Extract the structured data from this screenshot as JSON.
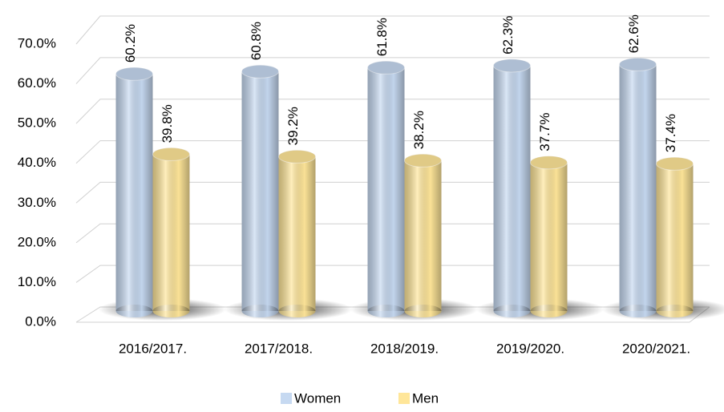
{
  "chart_data": {
    "type": "bar3d",
    "categories": [
      "2016/2017.",
      "2017/2018.",
      "2018/2019.",
      "2019/2020.",
      "2020/2021."
    ],
    "series": [
      {
        "name": "Women",
        "color": "#c6d9f1",
        "values": [
          60.2,
          60.8,
          61.8,
          62.3,
          62.6
        ],
        "value_labels": [
          "60.2%",
          "60.8%",
          "61.8%",
          "62.3%",
          "62.6%"
        ]
      },
      {
        "name": "Men",
        "color": "#ffe699",
        "values": [
          39.8,
          39.2,
          38.2,
          37.7,
          37.4
        ],
        "value_labels": [
          "39.8%",
          "39.2%",
          "38.2%",
          "37.7%",
          "37.4%"
        ]
      }
    ],
    "ylim": [
      0,
      70
    ],
    "yticks": [
      {
        "value": 0,
        "label": "0.0%"
      },
      {
        "value": 10,
        "label": "10.0%"
      },
      {
        "value": 20,
        "label": "20.0%"
      },
      {
        "value": 30,
        "label": "30.0%"
      },
      {
        "value": 40,
        "label": "40.0%"
      },
      {
        "value": 50,
        "label": "50.0%"
      },
      {
        "value": 60,
        "label": "60.0%"
      },
      {
        "value": 70,
        "label": "70.0%"
      }
    ],
    "grid": true,
    "legend": "bottom"
  }
}
